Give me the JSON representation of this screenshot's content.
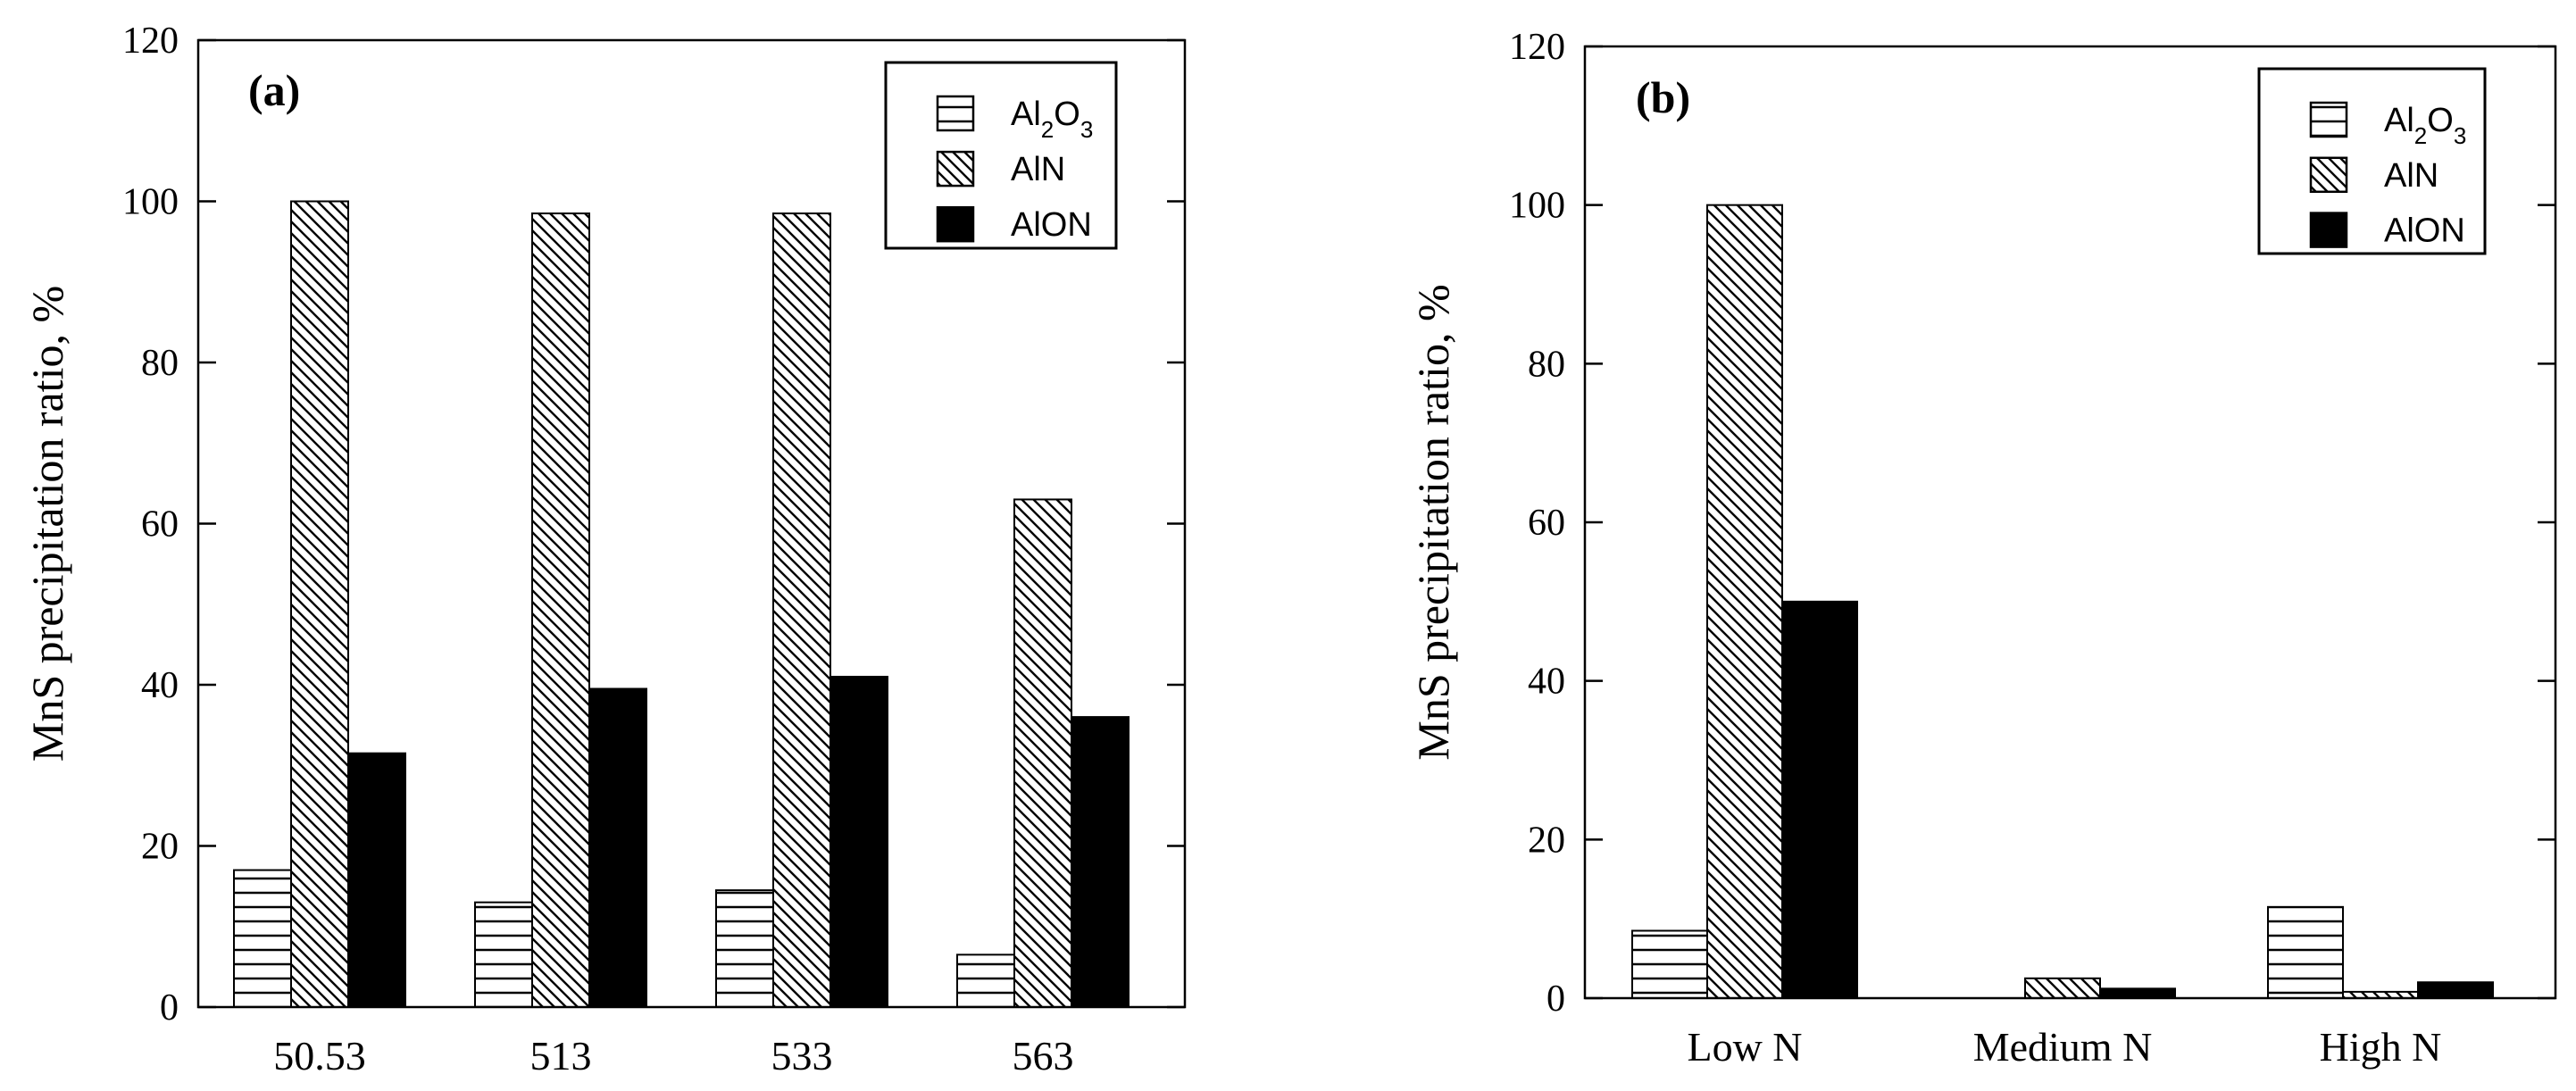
{
  "chart_data": [
    {
      "type": "bar",
      "panel_label": "(a)",
      "ylabel": "MnS precipitation ratio, %",
      "xlabel": "",
      "ylim": [
        0,
        120
      ],
      "yticks": [
        0,
        20,
        40,
        60,
        80,
        100,
        120
      ],
      "categories": [
        "50.53",
        "513",
        "533",
        "563"
      ],
      "legend_position": "top-right",
      "series": [
        {
          "name": "Al2O3",
          "label_main": "Al",
          "label_sub1": "2",
          "label_mid": "O",
          "label_sub2": "3",
          "pattern": "horizontal-lines",
          "values": [
            17,
            13,
            14.5,
            6.5
          ]
        },
        {
          "name": "AlN",
          "label_main": "AlN",
          "pattern": "diagonal-lines",
          "values": [
            100,
            98.5,
            98.5,
            63
          ]
        },
        {
          "name": "AlON",
          "label_main": "AlON",
          "pattern": "solid-black",
          "values": [
            31.5,
            39.5,
            41,
            36
          ]
        }
      ]
    },
    {
      "type": "bar",
      "panel_label": "(b)",
      "ylabel": "MnS precipitation ratio, %",
      "xlabel": "",
      "ylim": [
        0,
        120
      ],
      "yticks": [
        0,
        20,
        40,
        60,
        80,
        100,
        120
      ],
      "categories": [
        "Low N",
        "Medium N",
        "High N"
      ],
      "legend_position": "top-right",
      "series": [
        {
          "name": "Al2O3",
          "label_main": "Al",
          "label_sub1": "2",
          "label_mid": "O",
          "label_sub2": "3",
          "pattern": "horizontal-lines",
          "values": [
            8.5,
            0,
            11.5
          ]
        },
        {
          "name": "AlN",
          "label_main": "AlN",
          "pattern": "diagonal-lines",
          "values": [
            100,
            2.5,
            0.8
          ]
        },
        {
          "name": "AlON",
          "label_main": "AlON",
          "pattern": "solid-black",
          "values": [
            50,
            1.2,
            2
          ]
        }
      ]
    }
  ]
}
